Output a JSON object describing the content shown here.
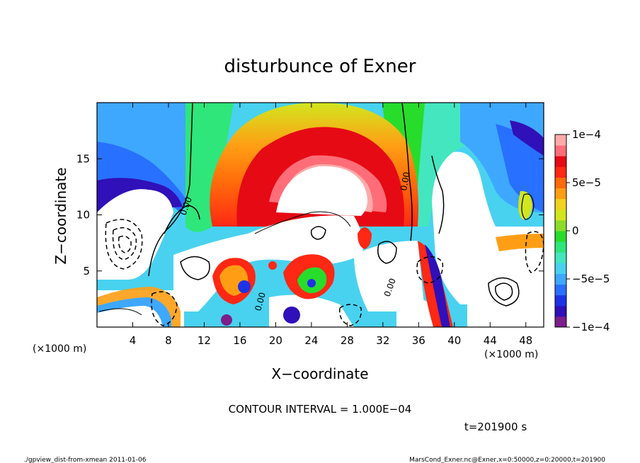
{
  "chart_data": {
    "type": "heatmap",
    "title": "disturbunce of Exner",
    "xlabel": "X−coordinate",
    "ylabel": "Z−coordinate",
    "x_unit_left": "(×1000 m)",
    "x_unit_right": "(×1000 m)",
    "xlim": [
      0,
      50
    ],
    "ylim": [
      0,
      20
    ],
    "x_ticks": [
      4,
      8,
      12,
      16,
      20,
      24,
      28,
      32,
      36,
      40,
      44,
      48
    ],
    "y_ticks": [
      5,
      10,
      15
    ],
    "colorbar": {
      "range": [
        -0.0001,
        0.0001
      ],
      "tick_values": [
        0.0001,
        5e-05,
        0,
        -5e-05,
        -0.0001
      ],
      "tick_labels": [
        "1e−4",
        "5e−5",
        "0",
        "−5e−5",
        "−1e−4"
      ],
      "colors": [
        "#7d1e8c",
        "#3010b8",
        "#1e32e6",
        "#2870ff",
        "#3ea8ff",
        "#48d2f0",
        "#44e6c0",
        "#2ee67a",
        "#28dc2c",
        "#8cdc2a",
        "#d2e61e",
        "#f0d21e",
        "#ff9e14",
        "#ff6a0a",
        "#ff2814",
        "#e60a14",
        "#ff6e78",
        "#ffaaaa"
      ]
    },
    "contour_labels": [
      "0.00",
      "0.00",
      "0.00",
      "0.00"
    ],
    "contour_interval_text": "CONTOUR INTERVAL = 1.000E−04",
    "time_text": "t=201900 s"
  },
  "footer": {
    "left": "./gpview_dist-from-xmean  2011-01-06",
    "right": "MarsCond_Exner.nc@Exner,x=0:50000,z=0:20000,t=201900"
  }
}
